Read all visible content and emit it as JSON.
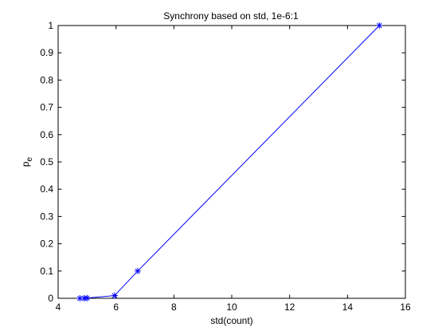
{
  "chart_data": {
    "type": "line",
    "title": "Synchrony based on std, 1e-6:1",
    "xlabel": "std(count)",
    "ylabel": "p_e",
    "ylabel_main": "p",
    "ylabel_sub": "e",
    "xlim": [
      4,
      16
    ],
    "ylim": [
      0,
      1
    ],
    "xticks": [
      4,
      6,
      8,
      10,
      12,
      14,
      16
    ],
    "xtick_labels": [
      "4",
      "6",
      "8",
      "10",
      "12",
      "14",
      "16"
    ],
    "yticks": [
      0,
      0.1,
      0.2,
      0.3,
      0.4,
      0.5,
      0.6,
      0.7,
      0.8,
      0.9,
      1
    ],
    "ytick_labels": [
      "0",
      "0.1",
      "0.2",
      "0.3",
      "0.4",
      "0.5",
      "0.6",
      "0.7",
      "0.8",
      "0.9",
      "1"
    ],
    "grid": false,
    "series": [
      {
        "color": "#0000ff",
        "marker": "asterisk",
        "x": [
          4.75,
          4.9,
          5.0,
          5.95,
          6.75,
          15.1
        ],
        "y": [
          0.0,
          0.0,
          0.001,
          0.01,
          0.1,
          1.0
        ]
      }
    ]
  }
}
